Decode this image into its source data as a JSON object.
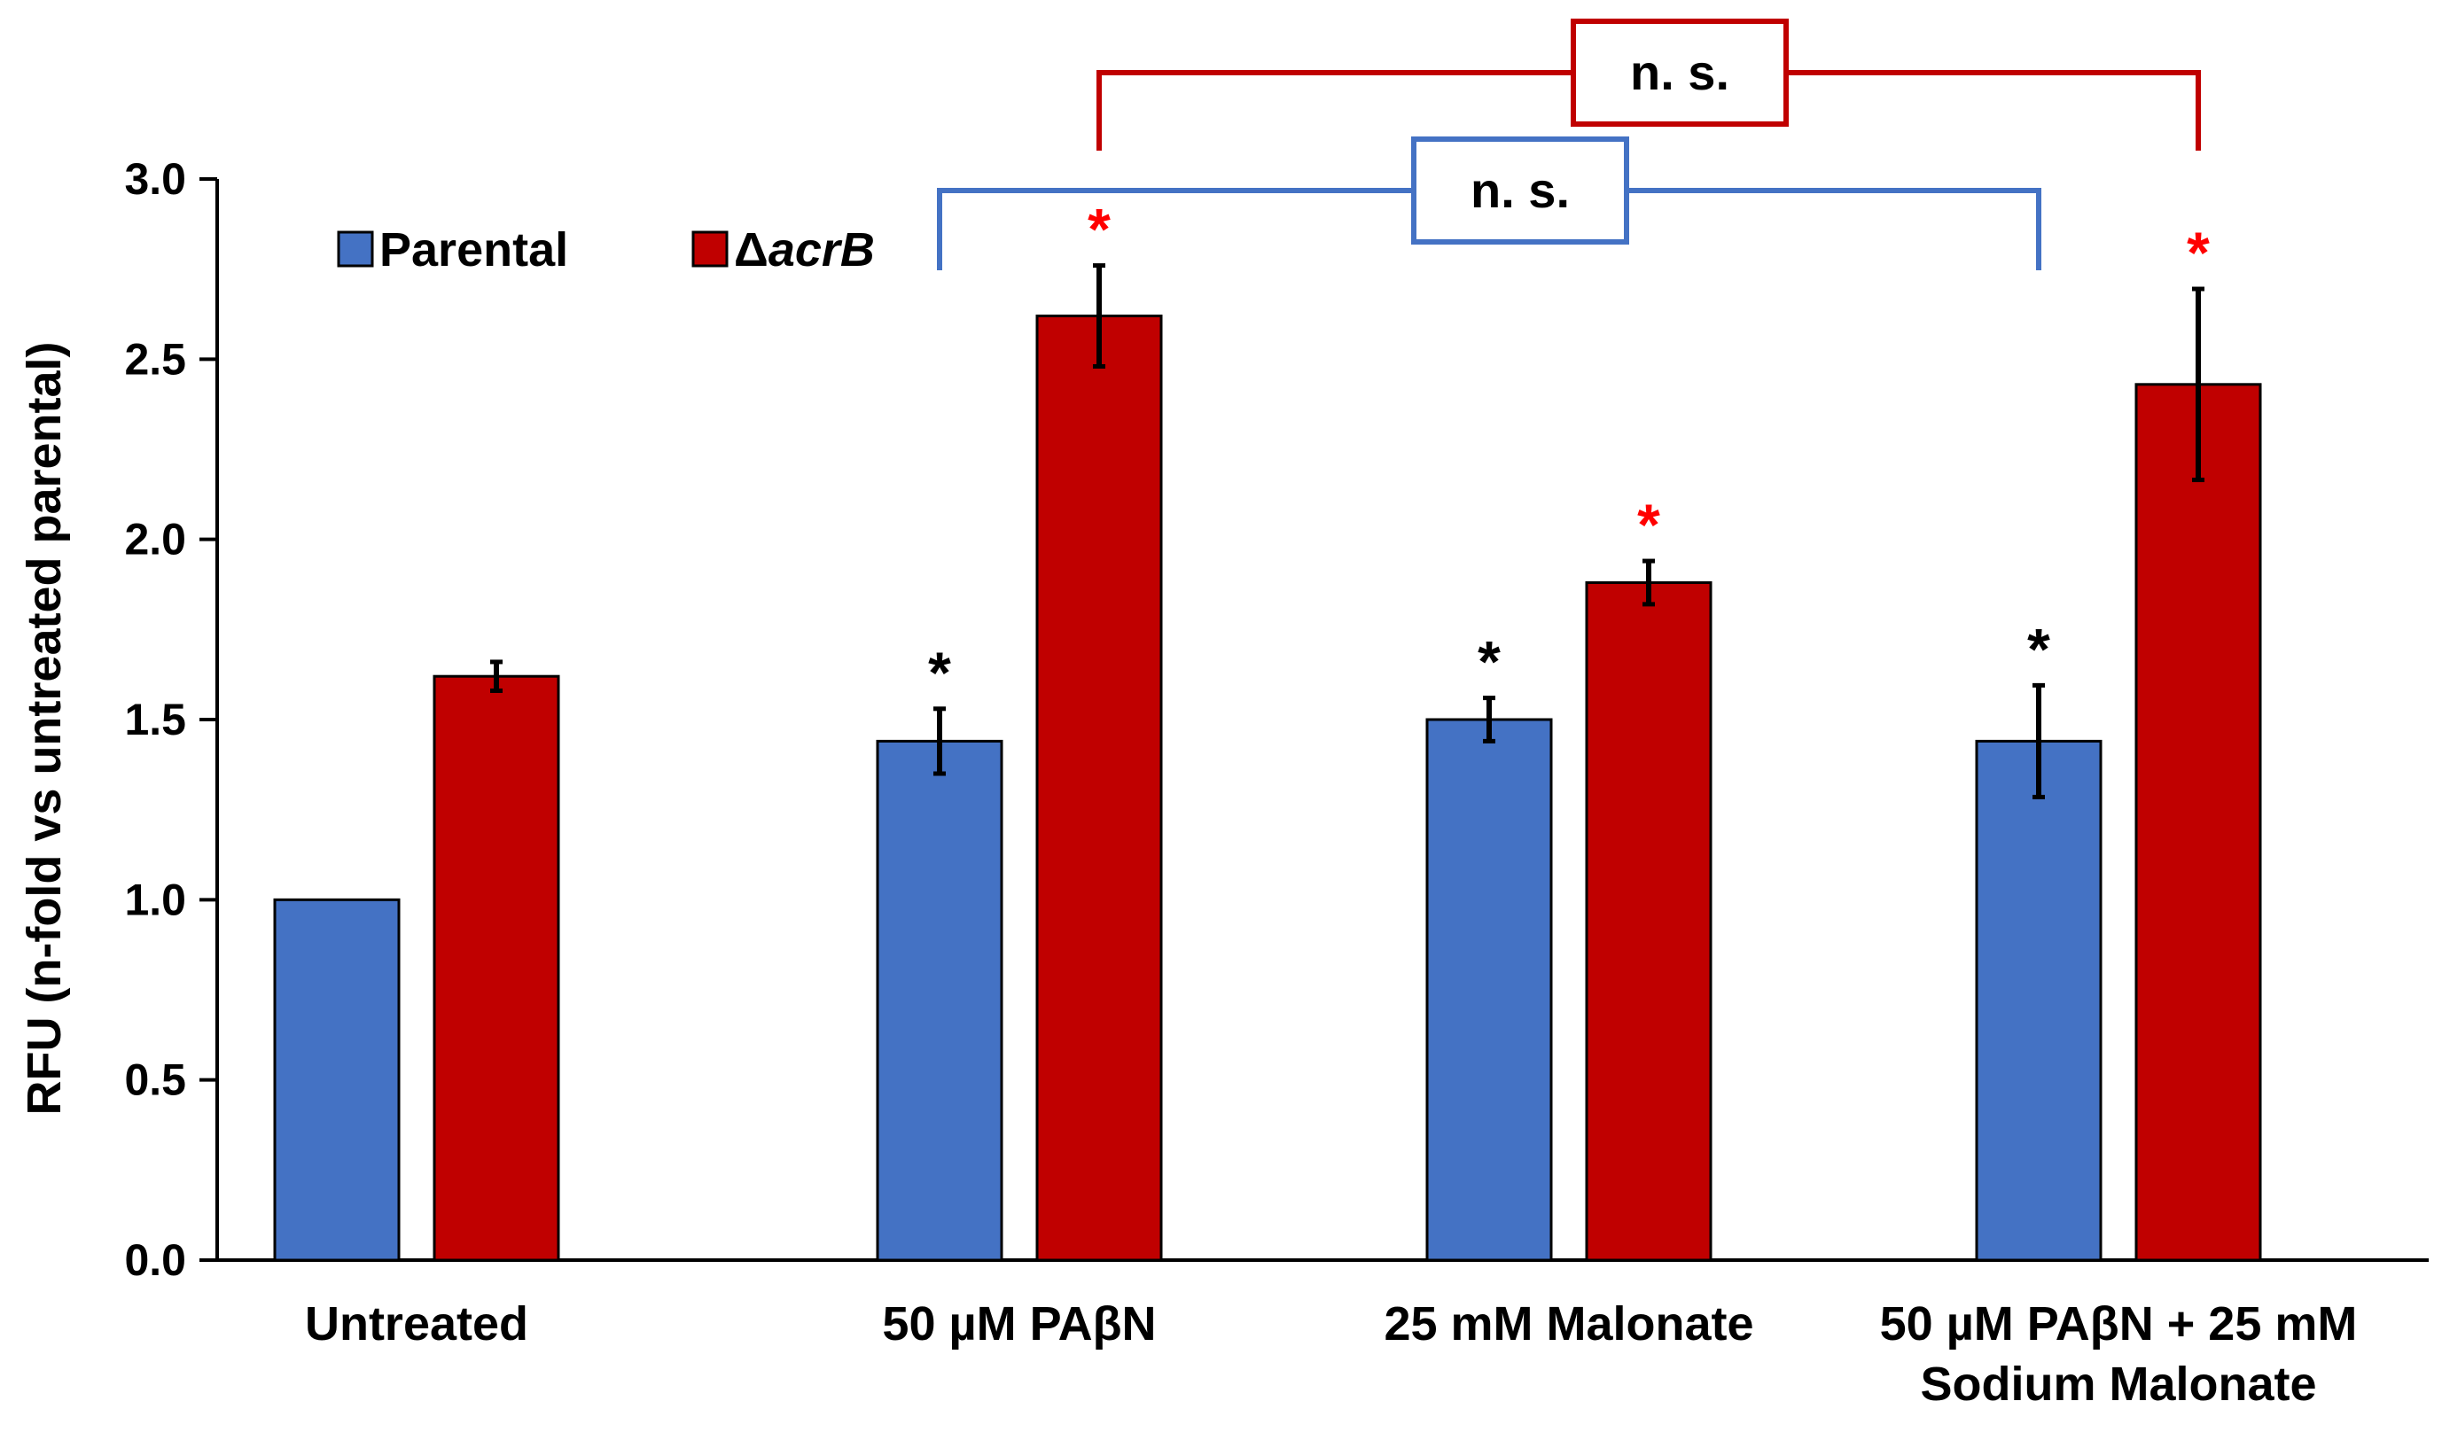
{
  "chart_data": {
    "type": "bar",
    "title": "",
    "xlabel": "",
    "ylabel": "RFU (n-fold vs untreated parental)",
    "ylim": [
      0,
      3.0
    ],
    "yticks": [
      "0.0",
      "0.5",
      "1.0",
      "1.5",
      "2.0",
      "2.5",
      "3.0"
    ],
    "grid": false,
    "legend_position": "top-left",
    "categories": [
      [
        "Untreated"
      ],
      [
        "50 µM PAβN"
      ],
      [
        "25 mM Malonate"
      ],
      [
        "50 µM PAβN + 25 mM",
        "Sodium Malonate"
      ]
    ],
    "series": [
      {
        "name": "Parental",
        "legend_prefix": "",
        "legend_italic": "",
        "color": "#4472C4",
        "values": [
          1.0,
          1.44,
          1.5,
          1.44
        ],
        "errors": [
          0.0,
          0.09,
          0.06,
          0.155
        ],
        "significance": [
          "",
          "*",
          "*",
          "*"
        ],
        "significance_color": "#000000"
      },
      {
        "name": "ΔacrB",
        "legend_prefix": "Δ",
        "legend_italic": "acrB",
        "color": "#C00000",
        "values": [
          1.62,
          2.62,
          1.88,
          2.43
        ],
        "errors": [
          0.04,
          0.14,
          0.06,
          0.265
        ],
        "significance": [
          "",
          "*",
          "*",
          "*"
        ],
        "significance_color": "#FF0000"
      }
    ],
    "comparisons": [
      {
        "series": 1,
        "from_category": 1,
        "to_category": 3,
        "label": "n. s.",
        "color": "#C00000"
      },
      {
        "series": 0,
        "from_category": 1,
        "to_category": 3,
        "label": "n. s.",
        "color": "#4472C4"
      }
    ]
  }
}
